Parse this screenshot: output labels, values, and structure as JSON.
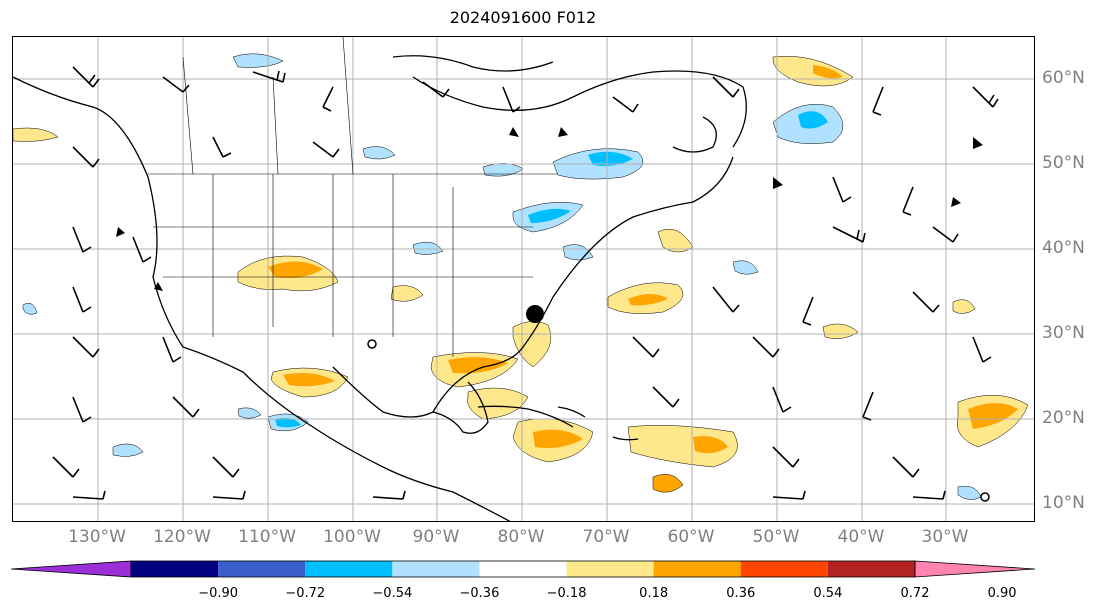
{
  "title": "2024091600 F012",
  "map": {
    "lon_labels": [
      "130°W",
      "120°W",
      "110°W",
      "100°W",
      "90°W",
      "80°W",
      "70°W",
      "60°W",
      "50°W",
      "40°W",
      "30°W"
    ],
    "lat_labels": [
      "60°N",
      "50°N",
      "40°N",
      "30°N",
      "20°N",
      "10°N"
    ],
    "gridline_color": "#b0b0b0",
    "label_color": "#808080",
    "coastline_color": "#000000",
    "barb_color": "#000000"
  },
  "colorbar": {
    "ticks": [
      "−0.90",
      "−0.72",
      "−0.54",
      "−0.36",
      "−0.18",
      "0.18",
      "0.36",
      "0.54",
      "0.72",
      "0.90"
    ],
    "colors": [
      "#9b30d9",
      "#000080",
      "#3a5fcd",
      "#00bfff",
      "#b0e2ff",
      "#ffffff",
      "#ffe88c",
      "#ffa500",
      "#ff4500",
      "#b22222",
      "#ff85b0"
    ]
  }
}
